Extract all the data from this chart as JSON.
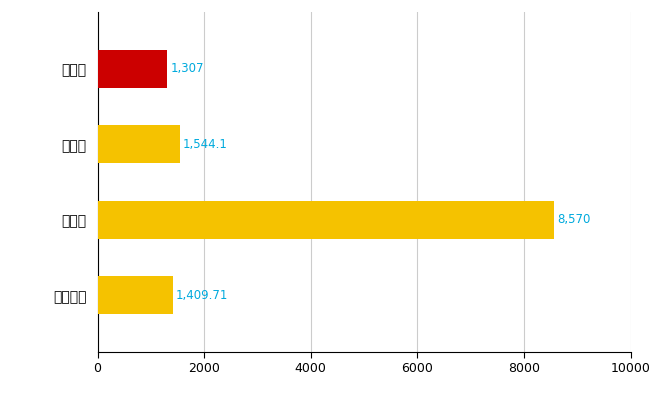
{
  "categories": [
    "雲仙市",
    "県平均",
    "県最大",
    "全国平均"
  ],
  "values": [
    1307,
    1544.1,
    8570,
    1409.71
  ],
  "bar_colors": [
    "#cc0000",
    "#f5c200",
    "#f5c200",
    "#f5c200"
  ],
  "value_labels": [
    "1,307",
    "1,544.1",
    "8,570",
    "1,409.71"
  ],
  "xlim": [
    0,
    10000
  ],
  "xticks": [
    0,
    2000,
    4000,
    6000,
    8000,
    10000
  ],
  "background_color": "#ffffff",
  "grid_color": "#cccccc",
  "label_color": "#00aadd",
  "label_fontsize": 8.5,
  "ytick_fontsize": 10,
  "xtick_fontsize": 9,
  "bar_height": 0.5
}
